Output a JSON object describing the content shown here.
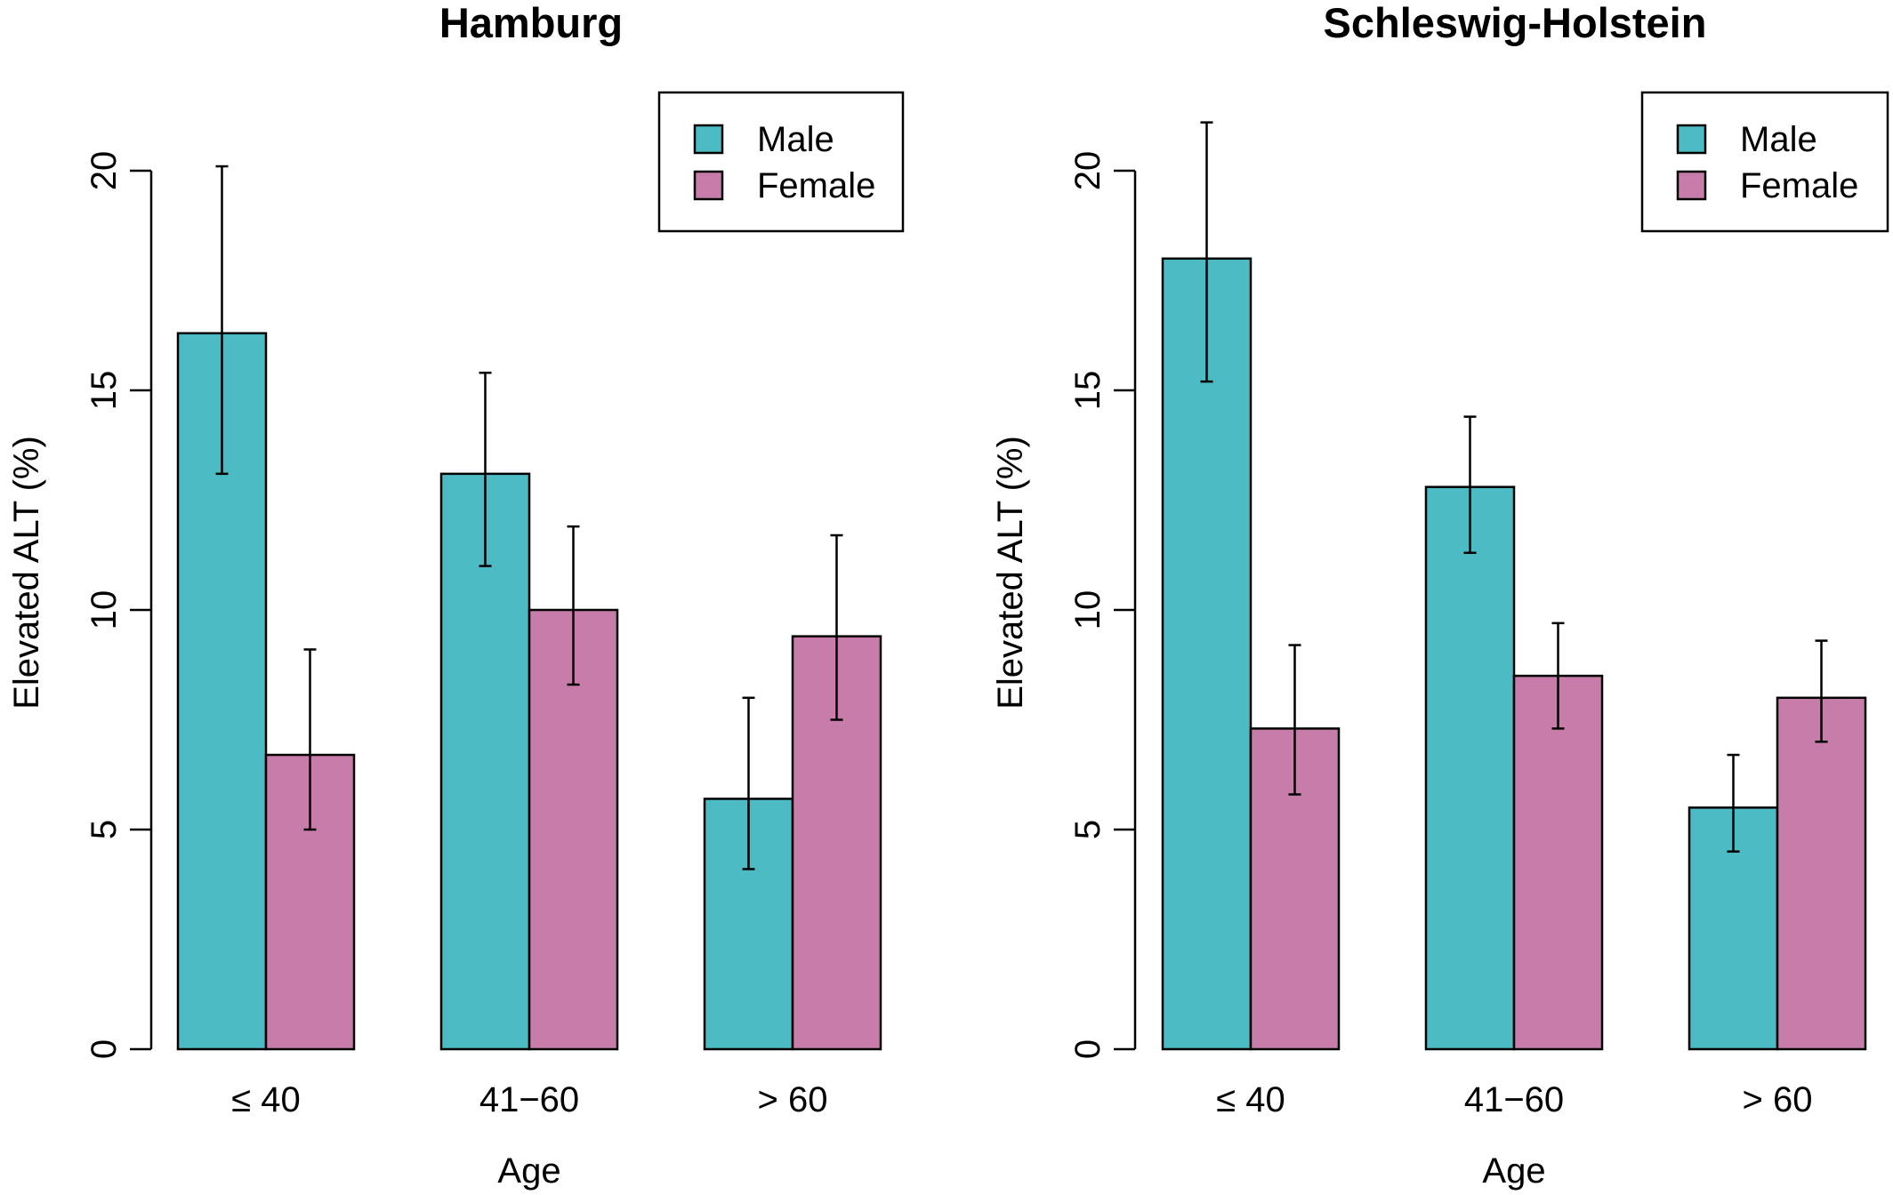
{
  "colors": {
    "male": "#4DBBC4",
    "female": "#C77CA9"
  },
  "chart_data": [
    {
      "type": "bar",
      "title": "Hamburg",
      "xlabel": "Age",
      "ylabel": "Elevated ALT (%)",
      "ylim": [
        0,
        20
      ],
      "yticks": [
        "0",
        "5",
        "10",
        "15",
        "20"
      ],
      "categories": [
        "≤ 40",
        "41−60",
        "> 60"
      ],
      "legend": {
        "position": "top-right",
        "entries": [
          "Male",
          "Female"
        ]
      },
      "series": [
        {
          "name": "Male",
          "values": [
            16.3,
            13.1,
            5.7
          ],
          "err_low": [
            13.1,
            11.0,
            4.1
          ],
          "err_high": [
            20.1,
            15.4,
            8.0
          ]
        },
        {
          "name": "Female",
          "values": [
            6.7,
            10.0,
            9.4
          ],
          "err_low": [
            5.0,
            8.3,
            7.5
          ],
          "err_high": [
            9.1,
            11.9,
            11.7
          ]
        }
      ]
    },
    {
      "type": "bar",
      "title": "Schleswig-Holstein",
      "xlabel": "Age",
      "ylabel": "Elevated ALT (%)",
      "ylim": [
        0,
        20
      ],
      "yticks": [
        "0",
        "5",
        "10",
        "15",
        "20"
      ],
      "categories": [
        "≤ 40",
        "41−60",
        "> 60"
      ],
      "legend": {
        "position": "top-right",
        "entries": [
          "Male",
          "Female"
        ]
      },
      "series": [
        {
          "name": "Male",
          "values": [
            18.0,
            12.8,
            5.5
          ],
          "err_low": [
            15.2,
            11.3,
            4.5
          ],
          "err_high": [
            21.1,
            14.4,
            6.7
          ]
        },
        {
          "name": "Female",
          "values": [
            7.3,
            8.5,
            8.0
          ],
          "err_low": [
            5.8,
            7.3,
            7.0
          ],
          "err_high": [
            9.2,
            9.7,
            9.3
          ]
        }
      ]
    }
  ]
}
